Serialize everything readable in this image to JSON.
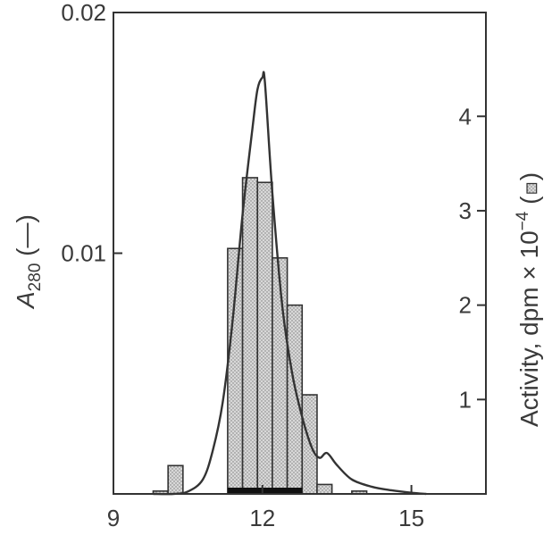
{
  "chart_data": {
    "type": "bar",
    "title": "",
    "xlabel": "",
    "xlim": [
      9,
      16.5
    ],
    "x_ticks": [
      9,
      12,
      15
    ],
    "x_tick_labels": [
      "9",
      "12",
      "15"
    ],
    "left_axis": {
      "label_main": "A",
      "label_sub": "280",
      "label_suffix": " (—)",
      "ylim": [
        0,
        0.02
      ],
      "ticks": [
        0.01,
        0.02
      ],
      "tick_labels": [
        "0.01",
        "0.02"
      ]
    },
    "right_axis": {
      "label_main": "Activity, dpm × 10",
      "label_sup": "−4",
      "label_suffix": " (",
      "label_close": ")",
      "ylim": [
        0,
        5.1
      ],
      "ticks": [
        1,
        2,
        3,
        4
      ],
      "tick_labels": [
        "1",
        "2",
        "3",
        "4"
      ]
    },
    "series": [
      {
        "type": "bar",
        "axis": "right",
        "bin_width": 0.3,
        "bins": [
          {
            "x0": 9.8,
            "value": 0.03
          },
          {
            "x0": 10.1,
            "value": 0.3
          },
          {
            "x0": 11.3,
            "value": 2.6
          },
          {
            "x0": 11.6,
            "value": 3.35
          },
          {
            "x0": 11.9,
            "value": 3.3
          },
          {
            "x0": 12.2,
            "value": 2.5
          },
          {
            "x0": 12.5,
            "value": 2.0
          },
          {
            "x0": 12.8,
            "value": 1.05
          },
          {
            "x0": 13.1,
            "value": 0.1
          },
          {
            "x0": 13.8,
            "value": 0.03
          }
        ]
      },
      {
        "type": "line",
        "axis": "left",
        "x": [
          9.8,
          10.2,
          10.5,
          10.8,
          11.0,
          11.2,
          11.4,
          11.6,
          11.8,
          11.9,
          12.0,
          12.05,
          12.2,
          12.4,
          12.6,
          12.8,
          13.0,
          13.15,
          13.3,
          13.5,
          13.8,
          14.2,
          14.6,
          15.0,
          15.3
        ],
        "y": [
          0.0,
          0.0,
          0.0001,
          0.0006,
          0.0018,
          0.0038,
          0.0072,
          0.0116,
          0.0152,
          0.0168,
          0.0173,
          0.0171,
          0.0125,
          0.0078,
          0.005,
          0.0032,
          0.0019,
          0.0015,
          0.0017,
          0.0012,
          0.0006,
          0.0003,
          0.00015,
          5e-05,
          0.0
        ]
      }
    ],
    "collected_fraction_bar": {
      "x_start": 11.3,
      "x_end": 12.8
    }
  }
}
